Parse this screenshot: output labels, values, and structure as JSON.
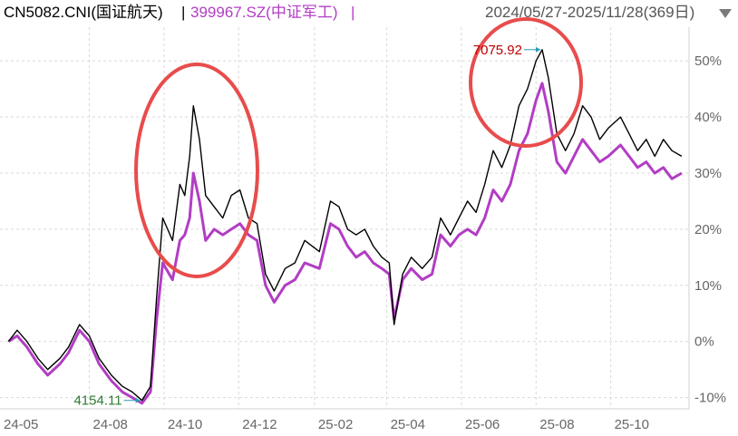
{
  "header": {
    "series1_label": "CN5082.CNI(国证航天)",
    "separator": "|",
    "series2_label": "399967.SZ(中证军工)",
    "date_range": "2024/05/27-2025/11/28(369日)"
  },
  "colors": {
    "series1": "#000000",
    "series2": "#b23dc4",
    "grid": "#d9d9d9",
    "axis_text": "#666666",
    "high_label": "#c00000",
    "low_label": "#2e7d32",
    "circle": "#e84c4c"
  },
  "chart_data": {
    "type": "line",
    "title": "",
    "xlabel": "",
    "ylabel": "",
    "ylim": [
      -12,
      56
    ],
    "yticks": [
      -10,
      0,
      10,
      20,
      30,
      40,
      50
    ],
    "ytick_labels": [
      "-10%",
      "0%",
      "10%",
      "20%",
      "30%",
      "40%",
      "50%"
    ],
    "xtick_labels": [
      "24-05",
      "24-08",
      "24-10",
      "24-12",
      "25-02",
      "25-04",
      "25-06",
      "25-08",
      "25-10"
    ],
    "grid": true,
    "legend": "top",
    "annotations": {
      "high": {
        "text": "7075.92",
        "x": "2025-08-06",
        "y": 52
      },
      "low": {
        "text": "4154.11",
        "x": "2024-09-13",
        "y": -10.5
      }
    },
    "series": [
      {
        "name": "CN5082.CNI(国证航天)",
        "points": [
          [
            "2024-05-27",
            0
          ],
          [
            "2024-06-03",
            2
          ],
          [
            "2024-06-11",
            0
          ],
          [
            "2024-06-20",
            -3
          ],
          [
            "2024-06-28",
            -5
          ],
          [
            "2024-07-08",
            -3
          ],
          [
            "2024-07-15",
            -1
          ],
          [
            "2024-07-24",
            3
          ],
          [
            "2024-08-01",
            1
          ],
          [
            "2024-08-09",
            -3
          ],
          [
            "2024-08-19",
            -6
          ],
          [
            "2024-08-28",
            -8
          ],
          [
            "2024-09-05",
            -9
          ],
          [
            "2024-09-13",
            -10.5
          ],
          [
            "2024-09-20",
            -8
          ],
          [
            "2024-09-25",
            8
          ],
          [
            "2024-09-30",
            22
          ],
          [
            "2024-10-08",
            18
          ],
          [
            "2024-10-14",
            28
          ],
          [
            "2024-10-18",
            26
          ],
          [
            "2024-10-22",
            33
          ],
          [
            "2024-10-25",
            42
          ],
          [
            "2024-10-30",
            36
          ],
          [
            "2024-11-04",
            26
          ],
          [
            "2024-11-11",
            24
          ],
          [
            "2024-11-18",
            22
          ],
          [
            "2024-11-25",
            26
          ],
          [
            "2024-12-02",
            27
          ],
          [
            "2024-12-09",
            22
          ],
          [
            "2024-12-16",
            21
          ],
          [
            "2024-12-23",
            12
          ],
          [
            "2024-12-30",
            9
          ],
          [
            "2025-01-08",
            13
          ],
          [
            "2025-01-16",
            14
          ],
          [
            "2025-01-24",
            18
          ],
          [
            "2025-02-05",
            16
          ],
          [
            "2025-02-14",
            25
          ],
          [
            "2025-02-21",
            24
          ],
          [
            "2025-02-28",
            20
          ],
          [
            "2025-03-07",
            19
          ],
          [
            "2025-03-14",
            20
          ],
          [
            "2025-03-21",
            17
          ],
          [
            "2025-03-28",
            15
          ],
          [
            "2025-04-03",
            14
          ],
          [
            "2025-04-07",
            3
          ],
          [
            "2025-04-14",
            12
          ],
          [
            "2025-04-21",
            15
          ],
          [
            "2025-04-30",
            13
          ],
          [
            "2025-05-08",
            15
          ],
          [
            "2025-05-15",
            22
          ],
          [
            "2025-05-23",
            19
          ],
          [
            "2025-05-30",
            22
          ],
          [
            "2025-06-06",
            25
          ],
          [
            "2025-06-13",
            23
          ],
          [
            "2025-06-20",
            28
          ],
          [
            "2025-06-27",
            34
          ],
          [
            "2025-07-04",
            31
          ],
          [
            "2025-07-11",
            35
          ],
          [
            "2025-07-18",
            42
          ],
          [
            "2025-07-25",
            45
          ],
          [
            "2025-08-01",
            50
          ],
          [
            "2025-08-06",
            52
          ],
          [
            "2025-08-11",
            47
          ],
          [
            "2025-08-18",
            37
          ],
          [
            "2025-08-25",
            34
          ],
          [
            "2025-09-01",
            37
          ],
          [
            "2025-09-08",
            42
          ],
          [
            "2025-09-15",
            40
          ],
          [
            "2025-09-22",
            36
          ],
          [
            "2025-09-29",
            38
          ],
          [
            "2025-10-09",
            40
          ],
          [
            "2025-10-16",
            37
          ],
          [
            "2025-10-23",
            34
          ],
          [
            "2025-10-30",
            36
          ],
          [
            "2025-11-06",
            33
          ],
          [
            "2025-11-13",
            36
          ],
          [
            "2025-11-20",
            34
          ],
          [
            "2025-11-28",
            33
          ]
        ]
      },
      {
        "name": "399967.SZ(中证军工)",
        "points": [
          [
            "2024-05-27",
            0
          ],
          [
            "2024-06-03",
            1
          ],
          [
            "2024-06-11",
            -1
          ],
          [
            "2024-06-20",
            -4
          ],
          [
            "2024-06-28",
            -6
          ],
          [
            "2024-07-08",
            -4
          ],
          [
            "2024-07-15",
            -2
          ],
          [
            "2024-07-24",
            2
          ],
          [
            "2024-08-01",
            0
          ],
          [
            "2024-08-09",
            -4
          ],
          [
            "2024-08-19",
            -7
          ],
          [
            "2024-08-28",
            -9
          ],
          [
            "2024-09-05",
            -10
          ],
          [
            "2024-09-13",
            -11
          ],
          [
            "2024-09-20",
            -9
          ],
          [
            "2024-09-25",
            4
          ],
          [
            "2024-09-30",
            14
          ],
          [
            "2024-10-08",
            11
          ],
          [
            "2024-10-14",
            18
          ],
          [
            "2024-10-18",
            19
          ],
          [
            "2024-10-22",
            22
          ],
          [
            "2024-10-25",
            30
          ],
          [
            "2024-10-30",
            25
          ],
          [
            "2024-11-04",
            18
          ],
          [
            "2024-11-11",
            20
          ],
          [
            "2024-11-18",
            19
          ],
          [
            "2024-11-25",
            20
          ],
          [
            "2024-12-02",
            21
          ],
          [
            "2024-12-09",
            19
          ],
          [
            "2024-12-16",
            18
          ],
          [
            "2024-12-23",
            10
          ],
          [
            "2024-12-30",
            7
          ],
          [
            "2025-01-08",
            10
          ],
          [
            "2025-01-16",
            11
          ],
          [
            "2025-01-24",
            14
          ],
          [
            "2025-02-05",
            13
          ],
          [
            "2025-02-14",
            21
          ],
          [
            "2025-02-21",
            20
          ],
          [
            "2025-02-28",
            17
          ],
          [
            "2025-03-07",
            15
          ],
          [
            "2025-03-14",
            16
          ],
          [
            "2025-03-21",
            14
          ],
          [
            "2025-03-28",
            13
          ],
          [
            "2025-04-03",
            12
          ],
          [
            "2025-04-07",
            4
          ],
          [
            "2025-04-14",
            11
          ],
          [
            "2025-04-21",
            13
          ],
          [
            "2025-04-30",
            11
          ],
          [
            "2025-05-08",
            12
          ],
          [
            "2025-05-15",
            19
          ],
          [
            "2025-05-23",
            17
          ],
          [
            "2025-05-30",
            19
          ],
          [
            "2025-06-06",
            20
          ],
          [
            "2025-06-13",
            19
          ],
          [
            "2025-06-20",
            22
          ],
          [
            "2025-06-27",
            27
          ],
          [
            "2025-07-04",
            25
          ],
          [
            "2025-07-11",
            28
          ],
          [
            "2025-07-18",
            34
          ],
          [
            "2025-07-25",
            37
          ],
          [
            "2025-08-01",
            43
          ],
          [
            "2025-08-06",
            46
          ],
          [
            "2025-08-11",
            41
          ],
          [
            "2025-08-18",
            32
          ],
          [
            "2025-08-25",
            30
          ],
          [
            "2025-09-01",
            33
          ],
          [
            "2025-09-08",
            36
          ],
          [
            "2025-09-15",
            34
          ],
          [
            "2025-09-22",
            32
          ],
          [
            "2025-09-29",
            33
          ],
          [
            "2025-10-09",
            35
          ],
          [
            "2025-10-16",
            33
          ],
          [
            "2025-10-23",
            31
          ],
          [
            "2025-10-30",
            32
          ],
          [
            "2025-11-06",
            30
          ],
          [
            "2025-11-13",
            31
          ],
          [
            "2025-11-20",
            29
          ],
          [
            "2025-11-28",
            30
          ]
        ]
      }
    ]
  }
}
